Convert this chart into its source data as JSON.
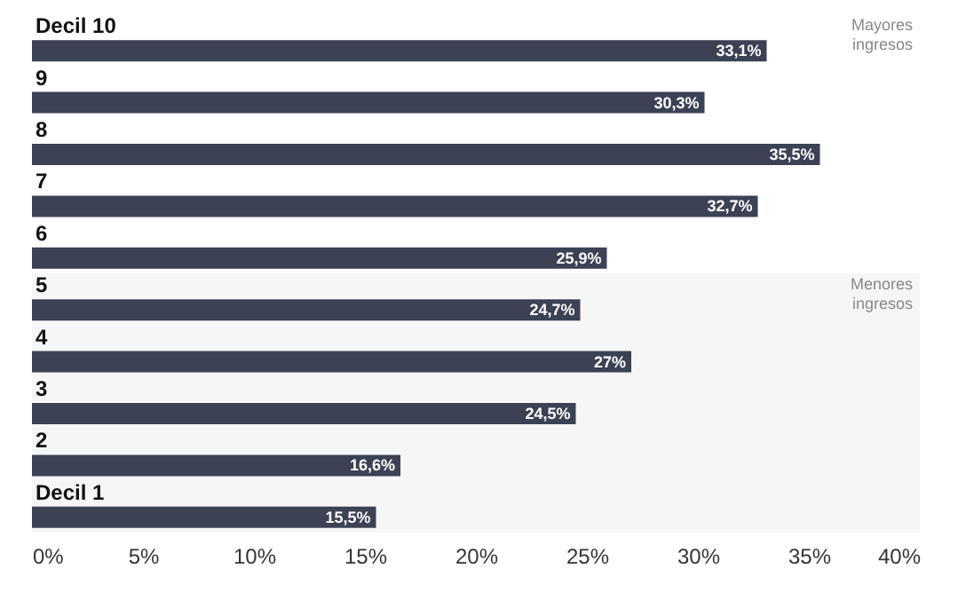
{
  "chart_data": {
    "type": "bar",
    "orientation": "horizontal",
    "categories": [
      "Decil 10",
      "9",
      "8",
      "7",
      "6",
      "5",
      "4",
      "3",
      "2",
      "Decil 1"
    ],
    "values": [
      33.1,
      30.3,
      35.5,
      32.7,
      25.9,
      24.7,
      27,
      24.5,
      16.6,
      15.5
    ],
    "value_labels": [
      "33,1%",
      "30,3%",
      "35,5%",
      "32,7%",
      "25,9%",
      "24,7%",
      "27%",
      "24,5%",
      "16,6%",
      "15,5%"
    ],
    "color": "#3c4254",
    "xlim": [
      0,
      40
    ],
    "xticks": [
      {
        "value": 0,
        "label": "0%"
      },
      {
        "value": 5,
        "label": "5%"
      },
      {
        "value": 10,
        "label": "10%"
      },
      {
        "value": 15,
        "label": "15%"
      },
      {
        "value": 20,
        "label": "20%"
      },
      {
        "value": 25,
        "label": "25%"
      },
      {
        "value": 30,
        "label": "30%"
      },
      {
        "value": 35,
        "label": "35%"
      },
      {
        "value": 40,
        "label": "40%"
      }
    ],
    "bands": [
      {
        "axis": "y",
        "from": "5",
        "to": "Decil 1",
        "label": "Menores ingresos",
        "color": "#f6f6f6"
      }
    ],
    "annotations": [
      "Mayores ingresos"
    ],
    "grid": false
  }
}
